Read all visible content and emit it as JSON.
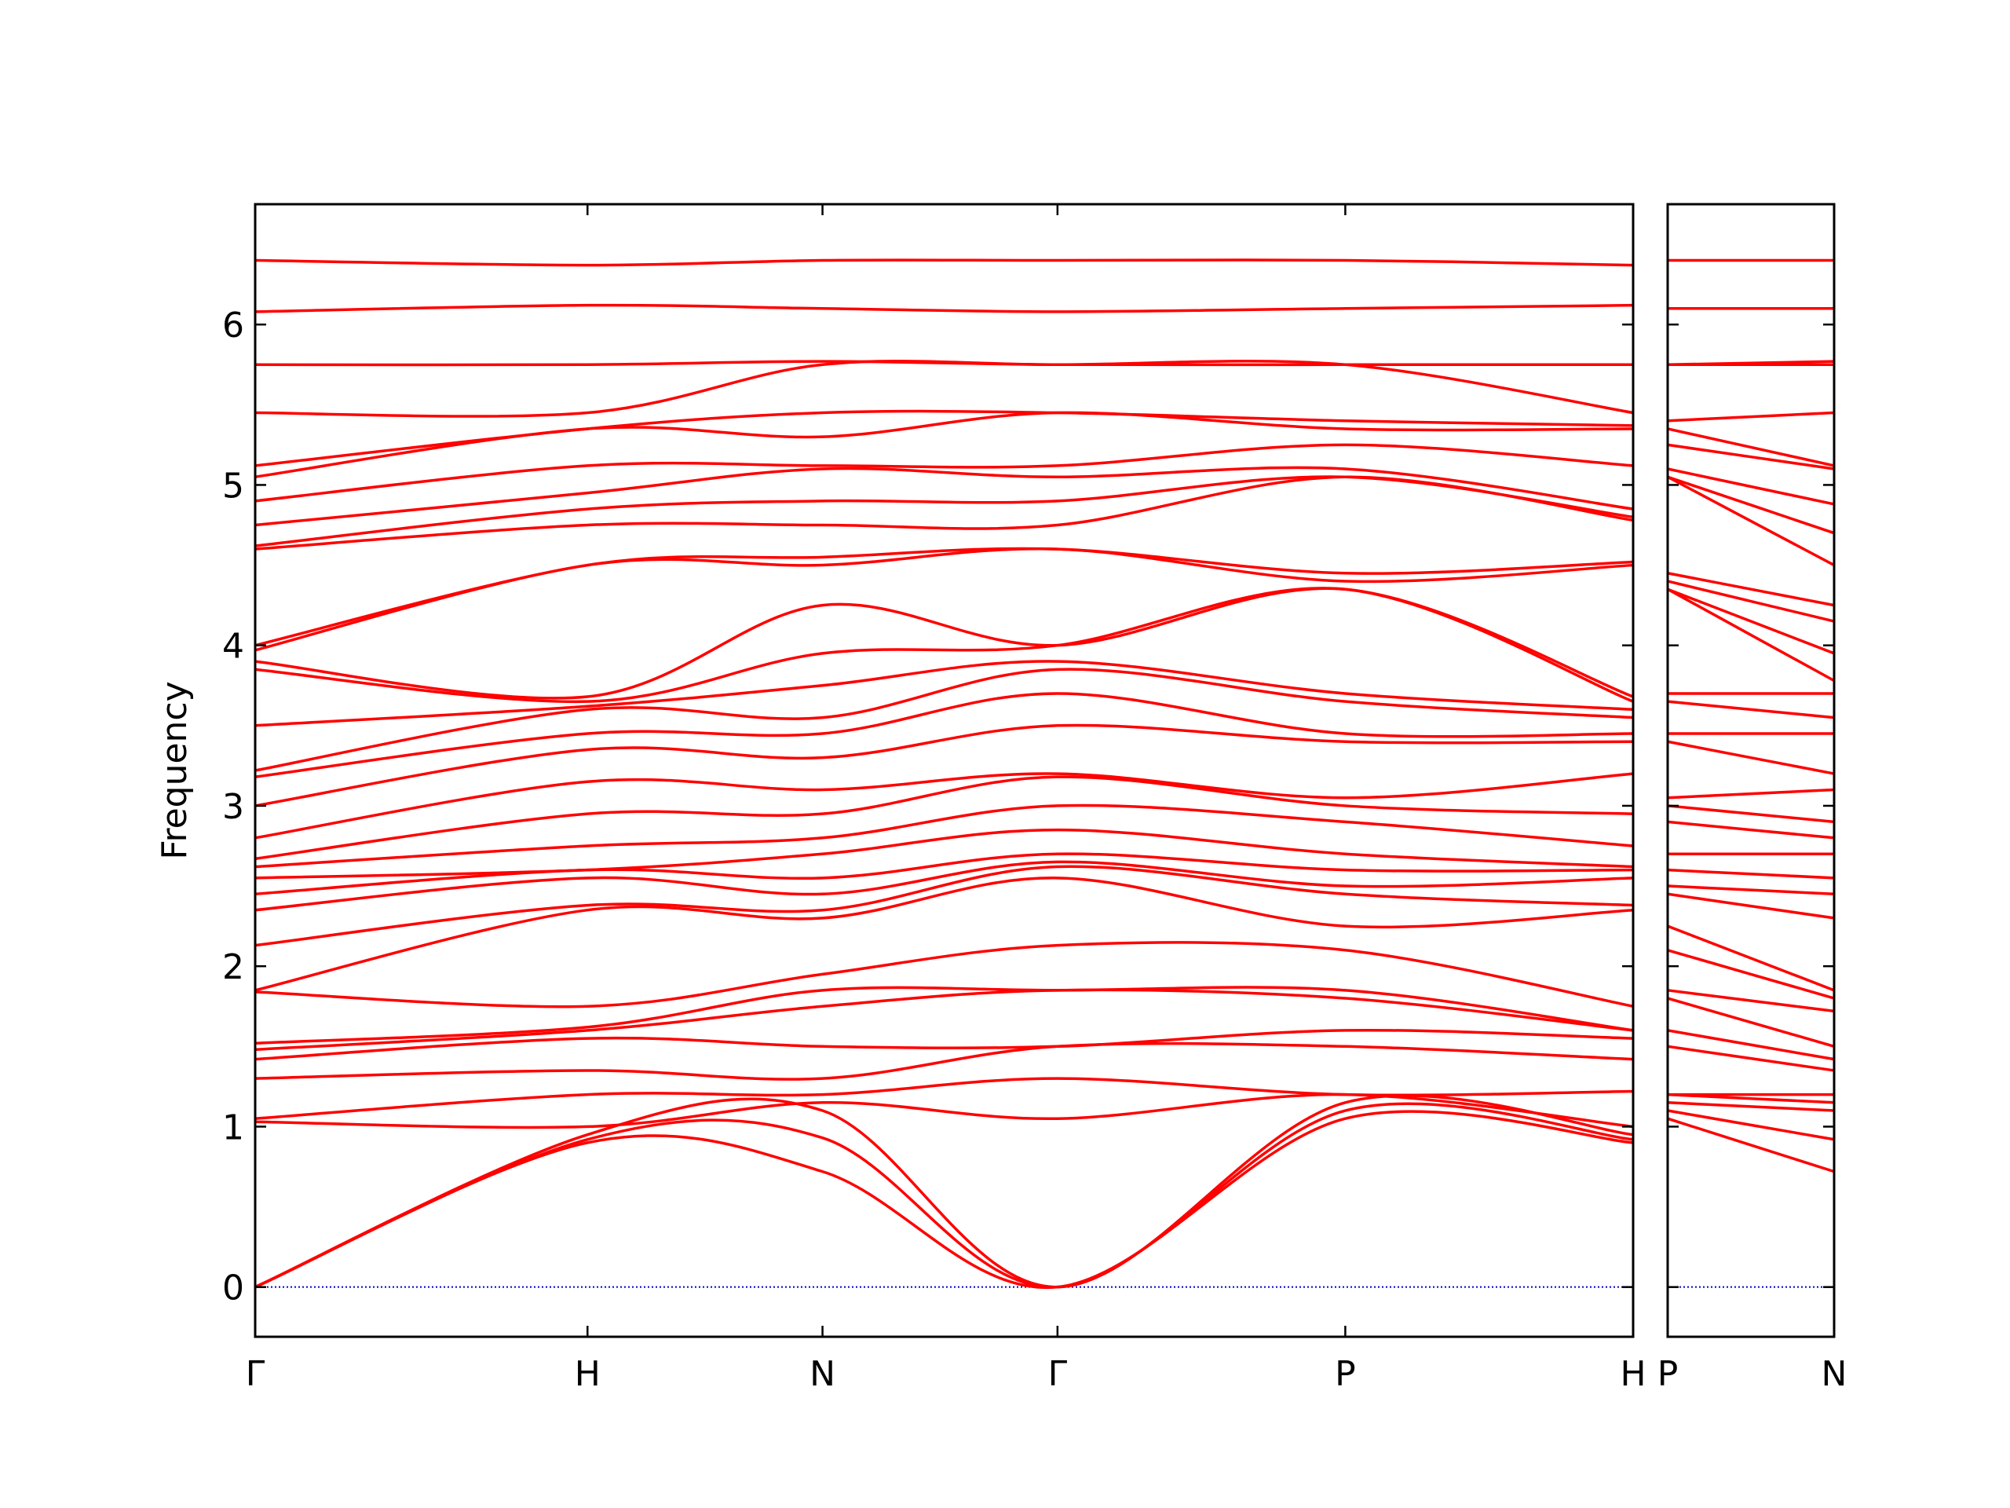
{
  "chart_data": [
    {
      "type": "line",
      "ylabel": "Frequency",
      "color": "#ff0000",
      "ytick_labels": true,
      "hline": 0,
      "hline_color": "#0000cc",
      "x": [
        0,
        1,
        1.7071,
        2.4142,
        3.2802,
        4.1463
      ],
      "xlim": [
        0,
        4.1463
      ],
      "xticks": [
        {
          "value": 0,
          "label": "Γ"
        },
        {
          "value": 1,
          "label": "H"
        },
        {
          "value": 1.7071,
          "label": "N"
        },
        {
          "value": 2.4142,
          "label": "Γ"
        },
        {
          "value": 3.2802,
          "label": "P"
        },
        {
          "value": 4.1463,
          "label": "H"
        }
      ],
      "ylim": [
        -0.31,
        6.75
      ],
      "yticks": [
        0,
        1,
        2,
        3,
        4,
        5,
        6
      ],
      "series": [
        {
          "values": [
            0,
            0.9,
            0.72,
            0,
            1.05,
            0.9
          ]
        },
        {
          "values": [
            0,
            0.92,
            0.93,
            0,
            1.1,
            0.92
          ]
        },
        {
          "values": [
            0,
            0.95,
            1.1,
            0,
            1.15,
            0.95
          ]
        },
        {
          "values": [
            1.03,
            1.0,
            1.15,
            1.05,
            1.2,
            1.0
          ]
        },
        {
          "values": [
            1.05,
            1.2,
            1.2,
            1.3,
            1.2,
            1.22
          ]
        },
        {
          "values": [
            1.3,
            1.35,
            1.3,
            1.5,
            1.5,
            1.42
          ]
        },
        {
          "values": [
            1.42,
            1.55,
            1.5,
            1.5,
            1.6,
            1.55
          ]
        },
        {
          "values": [
            1.48,
            1.6,
            1.75,
            1.85,
            1.8,
            1.6
          ]
        },
        {
          "values": [
            1.52,
            1.62,
            1.85,
            1.85,
            1.85,
            1.6
          ]
        },
        {
          "values": [
            1.84,
            1.75,
            1.95,
            2.13,
            2.1,
            1.75
          ]
        },
        {
          "values": [
            1.85,
            2.35,
            2.3,
            2.55,
            2.25,
            2.35
          ]
        },
        {
          "values": [
            2.13,
            2.38,
            2.35,
            2.62,
            2.45,
            2.38
          ]
        },
        {
          "values": [
            2.35,
            2.55,
            2.45,
            2.65,
            2.5,
            2.55
          ]
        },
        {
          "values": [
            2.45,
            2.6,
            2.55,
            2.7,
            2.6,
            2.6
          ]
        },
        {
          "values": [
            2.55,
            2.6,
            2.7,
            2.85,
            2.7,
            2.62
          ]
        },
        {
          "values": [
            2.62,
            2.75,
            2.8,
            3.0,
            2.9,
            2.75
          ]
        },
        {
          "values": [
            2.67,
            2.95,
            2.95,
            3.18,
            3.0,
            2.95
          ]
        },
        {
          "values": [
            2.8,
            3.15,
            3.1,
            3.2,
            3.05,
            3.2
          ]
        },
        {
          "values": [
            3.0,
            3.35,
            3.3,
            3.5,
            3.4,
            3.4
          ]
        },
        {
          "values": [
            3.18,
            3.45,
            3.45,
            3.7,
            3.45,
            3.45
          ]
        },
        {
          "values": [
            3.22,
            3.6,
            3.55,
            3.85,
            3.65,
            3.55
          ]
        },
        {
          "values": [
            3.5,
            3.62,
            3.75,
            3.9,
            3.7,
            3.6
          ]
        },
        {
          "values": [
            3.85,
            3.65,
            3.95,
            4.0,
            4.35,
            3.65
          ]
        },
        {
          "values": [
            3.9,
            3.68,
            4.25,
            4.0,
            4.35,
            3.68
          ]
        },
        {
          "values": [
            3.97,
            4.5,
            4.5,
            4.6,
            4.4,
            4.5
          ]
        },
        {
          "values": [
            4.0,
            4.5,
            4.55,
            4.6,
            4.45,
            4.52
          ]
        },
        {
          "values": [
            4.6,
            4.75,
            4.75,
            4.75,
            5.05,
            4.78
          ]
        },
        {
          "values": [
            4.62,
            4.85,
            4.9,
            4.9,
            5.05,
            4.8
          ]
        },
        {
          "values": [
            4.75,
            4.95,
            5.1,
            5.05,
            5.1,
            4.85
          ]
        },
        {
          "values": [
            4.9,
            5.12,
            5.12,
            5.12,
            5.25,
            5.12
          ]
        },
        {
          "values": [
            5.05,
            5.35,
            5.3,
            5.45,
            5.35,
            5.35
          ]
        },
        {
          "values": [
            5.12,
            5.35,
            5.45,
            5.45,
            5.4,
            5.37
          ]
        },
        {
          "values": [
            5.45,
            5.45,
            5.75,
            5.75,
            5.75,
            5.45
          ]
        },
        {
          "values": [
            5.75,
            5.75,
            5.77,
            5.75,
            5.75,
            5.75
          ]
        },
        {
          "values": [
            6.08,
            6.12,
            6.1,
            6.08,
            6.1,
            6.12
          ]
        },
        {
          "values": [
            6.4,
            6.37,
            6.4,
            6.4,
            6.4,
            6.37
          ]
        }
      ]
    },
    {
      "type": "line",
      "color": "#ff0000",
      "ytick_labels": false,
      "hline": 0,
      "hline_color": "#0000cc",
      "x": [
        4.1463,
        4.6463
      ],
      "xlim": [
        4.1463,
        4.6463
      ],
      "xticks": [
        {
          "value": 4.1463,
          "label": "P"
        },
        {
          "value": 4.6463,
          "label": "N"
        }
      ],
      "ylim": [
        -0.31,
        6.75
      ],
      "yticks": [
        0,
        1,
        2,
        3,
        4,
        5,
        6
      ],
      "series": [
        {
          "values": [
            1.05,
            0.72
          ]
        },
        {
          "values": [
            1.1,
            0.92
          ]
        },
        {
          "values": [
            1.15,
            1.1
          ]
        },
        {
          "values": [
            1.2,
            1.15
          ]
        },
        {
          "values": [
            1.2,
            1.2
          ]
        },
        {
          "values": [
            1.5,
            1.35
          ]
        },
        {
          "values": [
            1.6,
            1.42
          ]
        },
        {
          "values": [
            1.8,
            1.5
          ]
        },
        {
          "values": [
            1.85,
            1.72
          ]
        },
        {
          "values": [
            2.1,
            1.8
          ]
        },
        {
          "values": [
            2.25,
            1.85
          ]
        },
        {
          "values": [
            2.45,
            2.3
          ]
        },
        {
          "values": [
            2.5,
            2.45
          ]
        },
        {
          "values": [
            2.6,
            2.55
          ]
        },
        {
          "values": [
            2.7,
            2.7
          ]
        },
        {
          "values": [
            2.9,
            2.8
          ]
        },
        {
          "values": [
            3.0,
            2.9
          ]
        },
        {
          "values": [
            3.05,
            3.1
          ]
        },
        {
          "values": [
            3.4,
            3.2
          ]
        },
        {
          "values": [
            3.45,
            3.45
          ]
        },
        {
          "values": [
            3.65,
            3.55
          ]
        },
        {
          "values": [
            3.7,
            3.7
          ]
        },
        {
          "values": [
            4.35,
            3.78
          ]
        },
        {
          "values": [
            4.35,
            3.95
          ]
        },
        {
          "values": [
            4.4,
            4.15
          ]
        },
        {
          "values": [
            4.45,
            4.25
          ]
        },
        {
          "values": [
            5.05,
            4.5
          ]
        },
        {
          "values": [
            5.05,
            4.7
          ]
        },
        {
          "values": [
            5.1,
            4.88
          ]
        },
        {
          "values": [
            5.25,
            5.1
          ]
        },
        {
          "values": [
            5.35,
            5.12
          ]
        },
        {
          "values": [
            5.4,
            5.45
          ]
        },
        {
          "values": [
            5.75,
            5.75
          ]
        },
        {
          "values": [
            5.75,
            5.77
          ]
        },
        {
          "values": [
            6.1,
            6.1
          ]
        },
        {
          "values": [
            6.4,
            6.4
          ]
        }
      ]
    }
  ]
}
